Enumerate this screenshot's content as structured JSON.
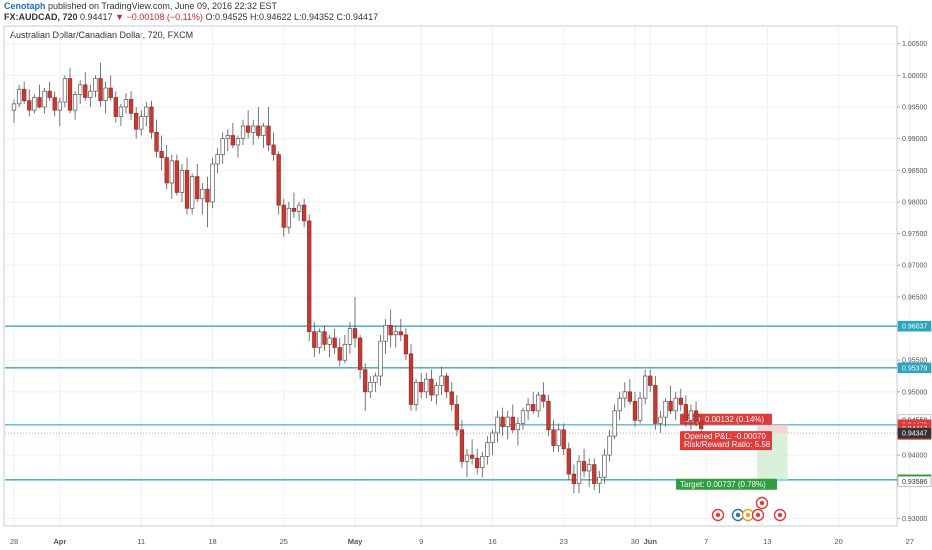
{
  "header": {
    "author": "Cenotaph",
    "published": "published on TradingView.com, June 09, 2016 22:32 EST",
    "symbol": "FX:AUDCAD, 720",
    "price": "0.94417",
    "change": "−0.00108 (−0.11%)",
    "ohlc": "O:0.94525 H:0.94622 L:0.94352 C:0.94417"
  },
  "chart_data": {
    "type": "candlestick",
    "title": "Australian Dollar/Canadian Dollar, 720, FXCM",
    "ylim": [
      0.9288,
      1.0078
    ],
    "yticks": [
      1.005,
      1.0,
      0.995,
      0.99,
      0.985,
      0.98,
      0.975,
      0.97,
      0.965,
      0.955,
      0.95,
      0.94,
      0.93
    ],
    "ytick_labels": [
      "1.00500",
      "1.00000",
      "0.99500",
      "0.99000",
      "0.98500",
      "0.98000",
      "0.97500",
      "0.97000",
      "0.96500",
      "0.95500",
      "0.95000",
      "0.94000",
      "0.93000"
    ],
    "xticks": [
      {
        "label": "28",
        "bar": 0
      },
      {
        "label": "Apr",
        "bar": 9
      },
      {
        "label": "11",
        "bar": 25
      },
      {
        "label": "18",
        "bar": 39
      },
      {
        "label": "25",
        "bar": 53
      },
      {
        "label": "May",
        "bar": 67
      },
      {
        "label": "9",
        "bar": 80
      },
      {
        "label": "16",
        "bar": 94
      },
      {
        "label": "23",
        "bar": 108
      },
      {
        "label": "30",
        "bar": 122
      },
      {
        "label": "Jun",
        "bar": 125
      },
      {
        "label": "7",
        "bar": 136
      },
      {
        "label": "13",
        "bar": 148
      },
      {
        "label": "20",
        "bar": 162
      },
      {
        "label": "27",
        "bar": 176
      }
    ],
    "horizontal_lines": [
      0.96037,
      0.95379,
      0.94479,
      0.9361
    ],
    "price_tags": [
      {
        "value": 0.96037,
        "label": "0.96037",
        "color": "#2ea3c0"
      },
      {
        "value": 0.95379,
        "label": "0.95379",
        "color": "#2ea3c0"
      },
      {
        "value": 0.94558,
        "label": "0.94558",
        "color": "#ffffff"
      },
      {
        "value": 0.94479,
        "label": "0.94479",
        "color": "#e03a3a"
      },
      {
        "value": 0.94417,
        "label": "0.94417",
        "color": "#e03a3a"
      },
      {
        "value": 0.94327,
        "label": "5:27:34",
        "color": "#e03a3a"
      },
      {
        "value": 0.94347,
        "label": "0.94347",
        "color": "#333333"
      },
      {
        "value": 0.9361,
        "label": "0.93610",
        "color": "#2e9e3e"
      },
      {
        "value": 0.93586,
        "label": "0.93586",
        "color": "#ffffff"
      }
    ],
    "position": {
      "stop_label": "Stop: 0.00132 (0.14%)",
      "pnl_label": "Opened P&L: -0.00070",
      "rr_label": "Risk/Reward Ratio: 5.58",
      "target_label": "Target: 0.00737 (0.78%)",
      "entry": 0.94347,
      "stop": 0.94479,
      "target": 0.9361,
      "start_bar": 146,
      "end_bar": 152
    },
    "candles": [
      [
        0.9945,
        0.9962,
        0.9925,
        0.9955
      ],
      [
        0.9955,
        0.9985,
        0.995,
        0.9978
      ],
      [
        0.9978,
        0.999,
        0.9955,
        0.996
      ],
      [
        0.996,
        0.9978,
        0.9935,
        0.9945
      ],
      [
        0.9945,
        0.997,
        0.994,
        0.9965
      ],
      [
        0.9965,
        0.9985,
        0.9948,
        0.995
      ],
      [
        0.995,
        0.998,
        0.994,
        0.9975
      ],
      [
        0.9975,
        0.999,
        0.996,
        0.9965
      ],
      [
        0.9965,
        0.9975,
        0.9935,
        0.9945
      ],
      [
        0.9945,
        0.9965,
        0.992,
        0.9958
      ],
      [
        0.9958,
        1.0,
        0.995,
        0.9995
      ],
      [
        0.9995,
        1.0012,
        0.994,
        0.9945
      ],
      [
        0.9945,
        0.9975,
        0.993,
        0.997
      ],
      [
        0.997,
        0.9992,
        0.9955,
        0.9985
      ],
      [
        0.9985,
        1.0005,
        0.996,
        0.9965
      ],
      [
        0.9965,
        0.9985,
        0.995,
        0.9975
      ],
      [
        0.9975,
        1.0,
        0.9965,
        0.9995
      ],
      [
        0.9995,
        1.002,
        0.995,
        0.996
      ],
      [
        0.996,
        0.999,
        0.994,
        0.998
      ],
      [
        0.998,
        1.0,
        0.996,
        0.9965
      ],
      [
        0.9965,
        0.9975,
        0.9925,
        0.9935
      ],
      [
        0.9935,
        0.9955,
        0.992,
        0.995
      ],
      [
        0.995,
        0.9972,
        0.994,
        0.9962
      ],
      [
        0.9962,
        0.9975,
        0.993,
        0.994
      ],
      [
        0.994,
        0.995,
        0.99,
        0.9915
      ],
      [
        0.9915,
        0.9945,
        0.9905,
        0.9935
      ],
      [
        0.9935,
        0.9958,
        0.992,
        0.995
      ],
      [
        0.995,
        0.996,
        0.99,
        0.991
      ],
      [
        0.991,
        0.993,
        0.987,
        0.988
      ],
      [
        0.988,
        0.9905,
        0.985,
        0.987
      ],
      [
        0.987,
        0.989,
        0.982,
        0.983
      ],
      [
        0.983,
        0.9875,
        0.9805,
        0.9865
      ],
      [
        0.9865,
        0.9875,
        0.981,
        0.9815
      ],
      [
        0.9815,
        0.986,
        0.98,
        0.985
      ],
      [
        0.985,
        0.987,
        0.978,
        0.979
      ],
      [
        0.979,
        0.9845,
        0.978,
        0.984
      ],
      [
        0.984,
        0.986,
        0.98,
        0.9805
      ],
      [
        0.9805,
        0.983,
        0.978,
        0.982
      ],
      [
        0.982,
        0.984,
        0.976,
        0.98
      ],
      [
        0.98,
        0.987,
        0.979,
        0.986
      ],
      [
        0.986,
        0.9885,
        0.9845,
        0.9875
      ],
      [
        0.9875,
        0.991,
        0.986,
        0.99
      ],
      [
        0.99,
        0.9915,
        0.988,
        0.9905
      ],
      [
        0.9905,
        0.9925,
        0.9885,
        0.989
      ],
      [
        0.989,
        0.9905,
        0.987,
        0.99
      ],
      [
        0.99,
        0.993,
        0.989,
        0.992
      ],
      [
        0.992,
        0.9945,
        0.99,
        0.991
      ],
      [
        0.991,
        0.993,
        0.989,
        0.992
      ],
      [
        0.992,
        0.995,
        0.99,
        0.9905
      ],
      [
        0.9905,
        0.9925,
        0.9885,
        0.992
      ],
      [
        0.992,
        0.995,
        0.988,
        0.989
      ],
      [
        0.989,
        0.991,
        0.9865,
        0.9875
      ],
      [
        0.9875,
        0.988,
        0.978,
        0.9795
      ],
      [
        0.9795,
        0.9805,
        0.9745,
        0.976
      ],
      [
        0.976,
        0.98,
        0.975,
        0.979
      ],
      [
        0.979,
        0.9815,
        0.9775,
        0.9785
      ],
      [
        0.9785,
        0.98,
        0.977,
        0.9795
      ],
      [
        0.9795,
        0.9805,
        0.976,
        0.977
      ],
      [
        0.977,
        0.978,
        0.958,
        0.9595
      ],
      [
        0.9595,
        0.961,
        0.9555,
        0.957
      ],
      [
        0.957,
        0.96,
        0.956,
        0.9595
      ],
      [
        0.9595,
        0.9605,
        0.9565,
        0.9575
      ],
      [
        0.9575,
        0.959,
        0.9555,
        0.9585
      ],
      [
        0.9585,
        0.96,
        0.956,
        0.957
      ],
      [
        0.957,
        0.9585,
        0.954,
        0.955
      ],
      [
        0.955,
        0.959,
        0.9545,
        0.9575
      ],
      [
        0.9575,
        0.961,
        0.956,
        0.96
      ],
      [
        0.96,
        0.965,
        0.957,
        0.9585
      ],
      [
        0.9585,
        0.959,
        0.952,
        0.9535
      ],
      [
        0.9535,
        0.9545,
        0.947,
        0.95
      ],
      [
        0.95,
        0.9525,
        0.949,
        0.9515
      ],
      [
        0.9515,
        0.953,
        0.95,
        0.9525
      ],
      [
        0.9525,
        0.959,
        0.951,
        0.958
      ],
      [
        0.958,
        0.9615,
        0.956,
        0.9605
      ],
      [
        0.9605,
        0.963,
        0.957,
        0.959
      ],
      [
        0.959,
        0.9605,
        0.957,
        0.9595
      ],
      [
        0.9595,
        0.9615,
        0.958,
        0.959
      ],
      [
        0.959,
        0.96,
        0.955,
        0.956
      ],
      [
        0.956,
        0.9575,
        0.947,
        0.948
      ],
      [
        0.948,
        0.952,
        0.947,
        0.9515
      ],
      [
        0.9515,
        0.953,
        0.949,
        0.95
      ],
      [
        0.95,
        0.953,
        0.949,
        0.952
      ],
      [
        0.952,
        0.9535,
        0.9485,
        0.9495
      ],
      [
        0.9495,
        0.9515,
        0.948,
        0.951
      ],
      [
        0.951,
        0.954,
        0.9495,
        0.9525
      ],
      [
        0.9525,
        0.953,
        0.949,
        0.95
      ],
      [
        0.95,
        0.9515,
        0.947,
        0.948
      ],
      [
        0.948,
        0.9495,
        0.943,
        0.944
      ],
      [
        0.944,
        0.9455,
        0.938,
        0.939
      ],
      [
        0.939,
        0.941,
        0.9365,
        0.94
      ],
      [
        0.94,
        0.9425,
        0.9385,
        0.9395
      ],
      [
        0.9395,
        0.941,
        0.937,
        0.938
      ],
      [
        0.938,
        0.9405,
        0.9365,
        0.9398
      ],
      [
        0.9398,
        0.943,
        0.9385,
        0.942
      ],
      [
        0.942,
        0.944,
        0.94,
        0.9435
      ],
      [
        0.9435,
        0.947,
        0.942,
        0.946
      ],
      [
        0.946,
        0.9475,
        0.943,
        0.9445
      ],
      [
        0.9445,
        0.947,
        0.9425,
        0.946
      ],
      [
        0.946,
        0.948,
        0.9435,
        0.944
      ],
      [
        0.944,
        0.946,
        0.9415,
        0.945
      ],
      [
        0.945,
        0.9475,
        0.944,
        0.947
      ],
      [
        0.947,
        0.949,
        0.9455,
        0.948
      ],
      [
        0.948,
        0.95,
        0.9465,
        0.947
      ],
      [
        0.947,
        0.95,
        0.946,
        0.9495
      ],
      [
        0.9495,
        0.9515,
        0.9475,
        0.9485
      ],
      [
        0.9485,
        0.9495,
        0.943,
        0.944
      ],
      [
        0.944,
        0.9455,
        0.9405,
        0.9415
      ],
      [
        0.9415,
        0.945,
        0.9405,
        0.944
      ],
      [
        0.944,
        0.945,
        0.94,
        0.941
      ],
      [
        0.941,
        0.942,
        0.936,
        0.937
      ],
      [
        0.937,
        0.9385,
        0.934,
        0.9355
      ],
      [
        0.9355,
        0.94,
        0.934,
        0.939
      ],
      [
        0.939,
        0.941,
        0.9365,
        0.9375
      ],
      [
        0.9375,
        0.9395,
        0.935,
        0.9385
      ],
      [
        0.9385,
        0.9395,
        0.9345,
        0.9355
      ],
      [
        0.9355,
        0.9375,
        0.934,
        0.9365
      ],
      [
        0.9365,
        0.941,
        0.9355,
        0.94
      ],
      [
        0.94,
        0.944,
        0.939,
        0.943
      ],
      [
        0.943,
        0.948,
        0.9425,
        0.947
      ],
      [
        0.947,
        0.95,
        0.9455,
        0.949
      ],
      [
        0.949,
        0.9515,
        0.9475,
        0.95
      ],
      [
        0.95,
        0.952,
        0.948,
        0.9485
      ],
      [
        0.9485,
        0.95,
        0.9445,
        0.9455
      ],
      [
        0.9455,
        0.95,
        0.945,
        0.949
      ],
      [
        0.949,
        0.9535,
        0.948,
        0.9525
      ],
      [
        0.9525,
        0.9535,
        0.95,
        0.951
      ],
      [
        0.951,
        0.9525,
        0.944,
        0.945
      ],
      [
        0.945,
        0.947,
        0.9435,
        0.946
      ],
      [
        0.946,
        0.949,
        0.9445,
        0.9485
      ],
      [
        0.9485,
        0.951,
        0.9465,
        0.947
      ],
      [
        0.947,
        0.95,
        0.9455,
        0.949
      ],
      [
        0.949,
        0.9505,
        0.947,
        0.948
      ],
      [
        0.948,
        0.9495,
        0.9445,
        0.9455
      ],
      [
        0.9455,
        0.948,
        0.944,
        0.947
      ],
      [
        0.947,
        0.9485,
        0.9445,
        0.9453
      ],
      [
        0.9453,
        0.9462,
        0.9435,
        0.9442
      ]
    ]
  }
}
